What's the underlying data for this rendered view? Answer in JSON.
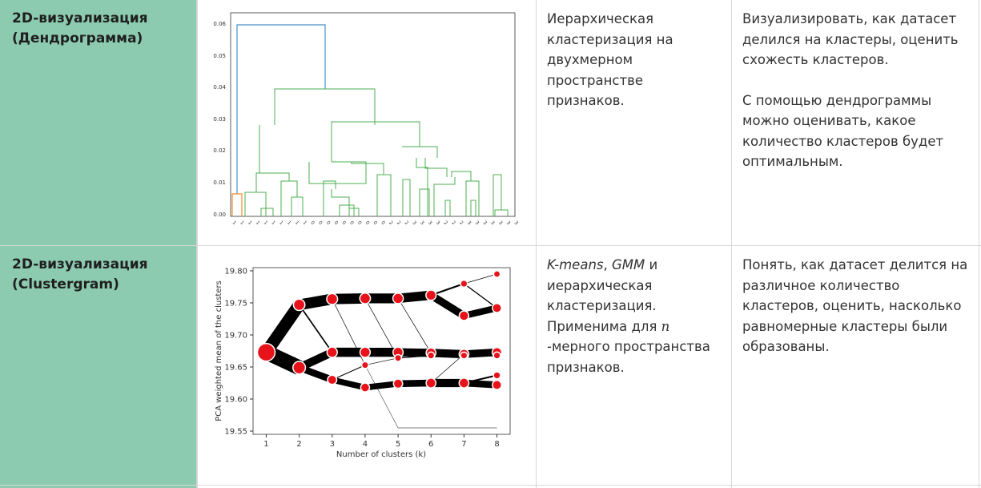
{
  "rows": [
    {
      "title": [
        "2D-визуализация",
        "(Дендрограмма)"
      ],
      "methods": [
        "Иерархическая",
        "кластеризация на",
        "двухмерном",
        "пространстве",
        "признаков."
      ],
      "purpose_p1": [
        "Визуализировать, как датасет",
        "делился на кластеры, оценить",
        "схожесть кластеров."
      ],
      "purpose_p2": [
        "С помощью дендрограммы",
        "можно оценивать, какое",
        "количество кластеров будет",
        "оптимальным."
      ],
      "chart_data": {
        "type": "dendrogram",
        "yticks": [
          "0.00",
          "0.01",
          "0.02",
          "0.03",
          "0.04",
          "0.05",
          "0.06"
        ],
        "ylim": [
          0,
          0.06
        ],
        "leaf_labels": [
          "1",
          "1",
          "1",
          "1",
          "1",
          "1",
          "1",
          "1",
          "1",
          "1",
          "0",
          "0",
          "0",
          "0",
          "0",
          "0",
          "0",
          "0",
          "0",
          "0",
          "2",
          "2",
          "2",
          "3",
          "3",
          "3",
          "3",
          "2",
          "2",
          "2",
          "3",
          "3",
          "3",
          "3",
          "3",
          "3",
          "3"
        ],
        "colors": {
          "top_link": "#4a90c8",
          "cluster_a": "#f28b30",
          "cluster_b": "#4caf50"
        },
        "grid": false
      }
    },
    {
      "title": [
        "2D-визуализация",
        "(Clustergram)"
      ],
      "methods_line1_em1": "K-means",
      "methods_line1_sep": ", ",
      "methods_line1_em2": "GMM",
      "methods_line1_tail": " и",
      "methods_rest": [
        "иерархическая",
        "кластеризация."
      ],
      "methods_line4": "Применима для ",
      "methods_n": "n",
      "methods_line5": "-мерного пространства",
      "methods_line6": "признаков.",
      "purpose": [
        "Понять, как датасет делится на",
        "различное количество",
        "кластеров, оценить, насколько",
        "равномерные кластеры были",
        "образованы."
      ],
      "chart_data": {
        "type": "clustergram",
        "xlabel": "Number of clusters (k)",
        "ylabel": "PCA weighted mean of the clusters",
        "xticks": [
          "1",
          "2",
          "3",
          "4",
          "5",
          "6",
          "7",
          "8"
        ],
        "yticks": [
          "19.55",
          "19.60",
          "19.65",
          "19.70",
          "19.75",
          "19.80"
        ],
        "xlim": [
          0.6,
          8.4
        ],
        "ylim": [
          19.545,
          19.805
        ],
        "nodes": [
          {
            "k": 1,
            "y": 19.673,
            "w": 1.0
          },
          {
            "k": 2,
            "y": 19.747,
            "w": 0.45
          },
          {
            "k": 2,
            "y": 19.649,
            "w": 0.55
          },
          {
            "k": 3,
            "y": 19.756,
            "w": 0.4
          },
          {
            "k": 3,
            "y": 19.673,
            "w": 0.35
          },
          {
            "k": 3,
            "y": 19.63,
            "w": 0.25
          },
          {
            "k": 4,
            "y": 19.757,
            "w": 0.38
          },
          {
            "k": 4,
            "y": 19.673,
            "w": 0.34
          },
          {
            "k": 4,
            "y": 19.653,
            "w": 0.04
          },
          {
            "k": 4,
            "y": 19.618,
            "w": 0.22
          },
          {
            "k": 5,
            "y": 19.757,
            "w": 0.36
          },
          {
            "k": 5,
            "y": 19.673,
            "w": 0.33
          },
          {
            "k": 5,
            "y": 19.664,
            "w": 0.04
          },
          {
            "k": 5,
            "y": 19.624,
            "w": 0.25
          },
          {
            "k": 5,
            "y": 19.555,
            "w": 0.01
          },
          {
            "k": 6,
            "y": 19.762,
            "w": 0.34
          },
          {
            "k": 6,
            "y": 19.672,
            "w": 0.3
          },
          {
            "k": 6,
            "y": 19.668,
            "w": 0.05
          },
          {
            "k": 6,
            "y": 19.625,
            "w": 0.3
          },
          {
            "k": 6,
            "y": 19.555,
            "w": 0.01
          },
          {
            "k": 7,
            "y": 19.78,
            "w": 0.06
          },
          {
            "k": 7,
            "y": 19.73,
            "w": 0.28
          },
          {
            "k": 7,
            "y": 19.67,
            "w": 0.3
          },
          {
            "k": 7,
            "y": 19.668,
            "w": 0.04
          },
          {
            "k": 7,
            "y": 19.625,
            "w": 0.3
          },
          {
            "k": 7,
            "y": 19.555,
            "w": 0.01
          },
          {
            "k": 8,
            "y": 19.795,
            "w": 0.02
          },
          {
            "k": 8,
            "y": 19.742,
            "w": 0.24
          },
          {
            "k": 8,
            "y": 19.673,
            "w": 0.28
          },
          {
            "k": 8,
            "y": 19.668,
            "w": 0.05
          },
          {
            "k": 8,
            "y": 19.637,
            "w": 0.06
          },
          {
            "k": 8,
            "y": 19.622,
            "w": 0.25
          },
          {
            "k": 8,
            "y": 19.555,
            "w": 0.01
          }
        ],
        "edges": [
          {
            "from": [
              1,
              19.673
            ],
            "to": [
              2,
              19.747
            ],
            "w": 0.45
          },
          {
            "from": [
              1,
              19.673
            ],
            "to": [
              2,
              19.649
            ],
            "w": 0.55
          },
          {
            "from": [
              2,
              19.747
            ],
            "to": [
              3,
              19.756
            ],
            "w": 0.4
          },
          {
            "from": [
              2,
              19.747
            ],
            "to": [
              3,
              19.673
            ],
            "w": 0.05
          },
          {
            "from": [
              2,
              19.649
            ],
            "to": [
              3,
              19.673
            ],
            "w": 0.3
          },
          {
            "from": [
              2,
              19.649
            ],
            "to": [
              3,
              19.63
            ],
            "w": 0.25
          },
          {
            "from": [
              3,
              19.756
            ],
            "to": [
              4,
              19.757
            ],
            "w": 0.38
          },
          {
            "from": [
              3,
              19.756
            ],
            "to": [
              4,
              19.653
            ],
            "w": 0.02
          },
          {
            "from": [
              3,
              19.673
            ],
            "to": [
              4,
              19.673
            ],
            "w": 0.34
          },
          {
            "from": [
              3,
              19.63
            ],
            "to": [
              4,
              19.618
            ],
            "w": 0.22
          },
          {
            "from": [
              3,
              19.63
            ],
            "to": [
              4,
              19.653
            ],
            "w": 0.03
          },
          {
            "from": [
              4,
              19.757
            ],
            "to": [
              5,
              19.757
            ],
            "w": 0.36
          },
          {
            "from": [
              4,
              19.757
            ],
            "to": [
              5,
              19.664
            ],
            "w": 0.02
          },
          {
            "from": [
              4,
              19.673
            ],
            "to": [
              5,
              19.673
            ],
            "w": 0.33
          },
          {
            "from": [
              4,
              19.653
            ],
            "to": [
              5,
              19.664
            ],
            "w": 0.02
          },
          {
            "from": [
              4,
              19.618
            ],
            "to": [
              5,
              19.624
            ],
            "w": 0.22
          },
          {
            "from": [
              4,
              19.653
            ],
            "to": [
              5,
              19.555
            ],
            "w": 0.01
          },
          {
            "from": [
              5,
              19.757
            ],
            "to": [
              6,
              19.762
            ],
            "w": 0.34
          },
          {
            "from": [
              5,
              19.757
            ],
            "to": [
              6,
              19.672
            ],
            "w": 0.02
          },
          {
            "from": [
              5,
              19.673
            ],
            "to": [
              6,
              19.672
            ],
            "w": 0.3
          },
          {
            "from": [
              5,
              19.664
            ],
            "to": [
              6,
              19.668
            ],
            "w": 0.04
          },
          {
            "from": [
              5,
              19.624
            ],
            "to": [
              6,
              19.625
            ],
            "w": 0.25
          },
          {
            "from": [
              5,
              19.555
            ],
            "to": [
              6,
              19.555
            ],
            "w": 0.01
          },
          {
            "from": [
              6,
              19.762
            ],
            "to": [
              7,
              19.78
            ],
            "w": 0.06
          },
          {
            "from": [
              6,
              19.762
            ],
            "to": [
              7,
              19.73
            ],
            "w": 0.28
          },
          {
            "from": [
              6,
              19.672
            ],
            "to": [
              7,
              19.67
            ],
            "w": 0.3
          },
          {
            "from": [
              6,
              19.668
            ],
            "to": [
              7,
              19.668
            ],
            "w": 0.04
          },
          {
            "from": [
              6,
              19.625
            ],
            "to": [
              7,
              19.625
            ],
            "w": 0.3
          },
          {
            "from": [
              6,
              19.625
            ],
            "to": [
              7,
              19.67
            ],
            "w": 0.02
          },
          {
            "from": [
              6,
              19.555
            ],
            "to": [
              7,
              19.555
            ],
            "w": 0.01
          },
          {
            "from": [
              7,
              19.78
            ],
            "to": [
              8,
              19.795
            ],
            "w": 0.02
          },
          {
            "from": [
              7,
              19.73
            ],
            "to": [
              8,
              19.742
            ],
            "w": 0.24
          },
          {
            "from": [
              7,
              19.78
            ],
            "to": [
              8,
              19.742
            ],
            "w": 0.04
          },
          {
            "from": [
              7,
              19.67
            ],
            "to": [
              8,
              19.673
            ],
            "w": 0.28
          },
          {
            "from": [
              7,
              19.668
            ],
            "to": [
              8,
              19.668
            ],
            "w": 0.04
          },
          {
            "from": [
              7,
              19.625
            ],
            "to": [
              8,
              19.637
            ],
            "w": 0.06
          },
          {
            "from": [
              7,
              19.625
            ],
            "to": [
              8,
              19.622
            ],
            "w": 0.25
          },
          {
            "from": [
              7,
              19.555
            ],
            "to": [
              8,
              19.555
            ],
            "w": 0.01
          }
        ],
        "colors": {
          "node_fill": "#e8121a",
          "node_stroke": "#ffffff",
          "edge": "#000000"
        }
      }
    }
  ]
}
